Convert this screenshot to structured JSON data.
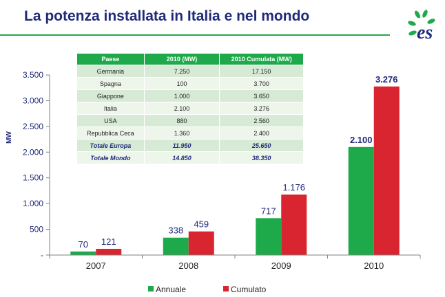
{
  "header": {
    "title": "La potenza installata in Italia e nel mondo"
  },
  "logo": {
    "text": "es"
  },
  "colors": {
    "annuale": "#1eaa4a",
    "cumulato": "#d9252f",
    "title": "#1f2a7a",
    "axis_text": "#1f2a7a"
  },
  "table": {
    "headers": [
      "Paese",
      "2010 (MW)",
      "2010 Cumulata (MW)"
    ],
    "rows": [
      [
        "Germania",
        "7.250",
        "17.150"
      ],
      [
        "Spagna",
        "100",
        "3.700"
      ],
      [
        "Giappone",
        "1.000",
        "3.650"
      ],
      [
        "Italia",
        "2.100",
        "3.276"
      ],
      [
        "USA",
        "880",
        "2.560"
      ],
      [
        "Repubblica Ceca",
        "1.360",
        "2.400"
      ],
      [
        "Totale Europa",
        "11.950",
        "25.650"
      ],
      [
        "Totale Mondo",
        "14.850",
        "38.350"
      ]
    ]
  },
  "chart_data": {
    "type": "bar",
    "categories": [
      "2007",
      "2008",
      "2009",
      "2010"
    ],
    "series": [
      {
        "name": "Annuale",
        "values": [
          70,
          338,
          717,
          2100
        ],
        "labels": [
          "70",
          "338",
          "717",
          "2.100"
        ]
      },
      {
        "name": "Cumulato",
        "values": [
          121,
          459,
          1176,
          3276
        ],
        "labels": [
          "121",
          "459",
          "1.176",
          "3.276"
        ]
      }
    ],
    "ylabel": "MW",
    "ylim": [
      0,
      3500
    ],
    "yticks": [
      0,
      500,
      1000,
      1500,
      2000,
      2500,
      3000,
      3500
    ],
    "ytick_labels": [
      "-",
      "500",
      "1.000",
      "1.500",
      "2.000",
      "2.500",
      "3.000",
      "3.500"
    ],
    "grid": false,
    "legend": "bottom"
  }
}
